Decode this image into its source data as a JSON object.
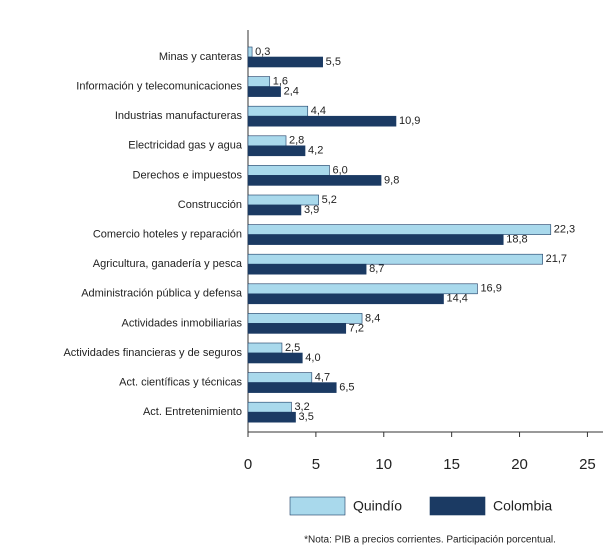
{
  "chart_data": {
    "type": "hbar",
    "categories": [
      "Minas y canteras",
      "Información y telecomunicaciones",
      "Industrias manufactureras",
      "Electricidad gas y agua",
      "Derechos e impuestos",
      "Construcción",
      "Comercio hoteles y reparación",
      "Agricultura, ganadería y pesca",
      "Administración pública y defensa",
      "Actividades inmobiliarias",
      "Actividades financieras y de seguros",
      "Act. científicas y técnicas",
      "Act. Entretenimiento"
    ],
    "series": [
      {
        "name": "Quindío",
        "color": "#a9d9ec",
        "values": [
          0.3,
          1.6,
          4.4,
          2.8,
          6.0,
          5.2,
          22.3,
          21.7,
          16.9,
          8.4,
          2.5,
          4.7,
          3.2
        ],
        "value_labels": [
          "0,3",
          "1,6",
          "4,4",
          "2,8",
          "6,0",
          "5,2",
          "22,3",
          "21,7",
          "16,9",
          "8,4",
          "2,5",
          "4,7",
          "3,2"
        ]
      },
      {
        "name": "Colombia",
        "color": "#1b3a63",
        "values": [
          5.5,
          2.4,
          10.9,
          4.2,
          9.8,
          3.9,
          18.8,
          8.7,
          14.4,
          7.2,
          4.0,
          6.5,
          3.5
        ],
        "value_labels": [
          "5,5",
          "2,4",
          "10,9",
          "4,2",
          "9,8",
          "3,9",
          "18,8",
          "8,7",
          "14,4",
          "7,2",
          "4,0",
          "6,5",
          "3,5"
        ]
      }
    ],
    "xlim": [
      0,
      26
    ],
    "xticks": [
      0,
      5,
      10,
      15,
      20,
      25
    ],
    "legend": "bottom",
    "note": "*Nota: PIB a precios corrientes. Participación porcentual."
  }
}
